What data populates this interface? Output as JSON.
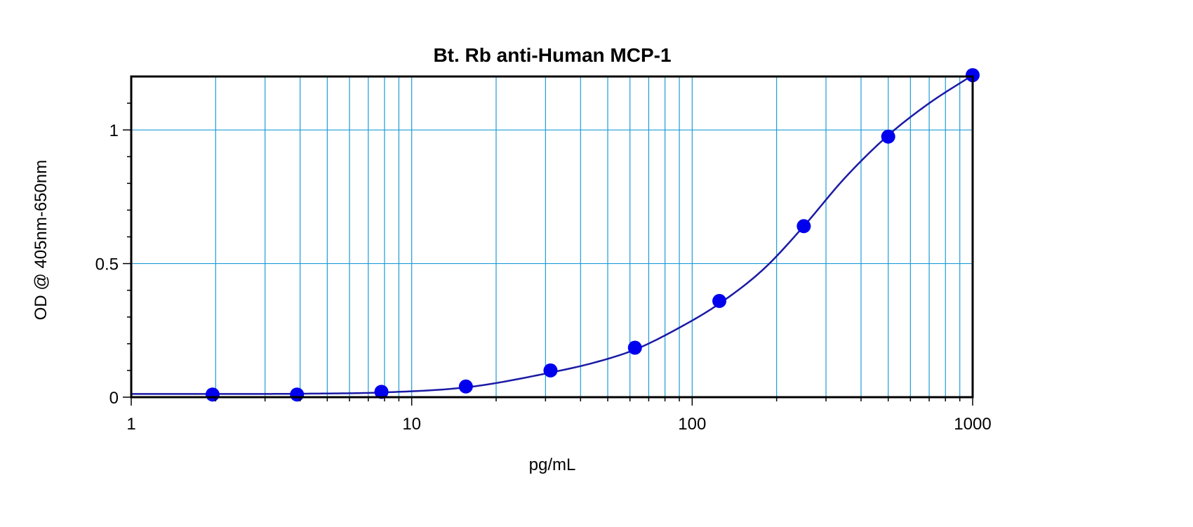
{
  "chart_data": {
    "type": "scatter",
    "title": "Bt. Rb anti-Human MCP-1",
    "xlabel": "pg/mL",
    "ylabel": "OD @ 405nm-650nm",
    "xscale": "log",
    "xlim": [
      1,
      1000
    ],
    "ylim": [
      0,
      1.2
    ],
    "x_ticks": [
      1,
      10,
      100,
      1000
    ],
    "x_tick_labels": [
      "1",
      "10",
      "100",
      "1000"
    ],
    "y_ticks": [
      0,
      0.5,
      1
    ],
    "y_tick_labels": [
      "0",
      "0.5",
      "1"
    ],
    "grid": true,
    "legend": "none",
    "colors": {
      "points": "#0000ee",
      "curve": "#1a1aa6",
      "grid": "#1e9bd7",
      "axes": "#000000"
    },
    "series": [
      {
        "x": [
          1.95,
          3.9,
          7.8,
          15.6,
          31.25,
          62.5,
          125,
          250,
          500,
          1000
        ],
        "y": [
          0.01,
          0.01,
          0.02,
          0.04,
          0.1,
          0.185,
          0.36,
          0.64,
          0.975,
          1.205
        ]
      }
    ],
    "fit_curve": {
      "x": [
        1,
        2,
        4,
        8,
        16,
        31.25,
        45,
        62.5,
        90,
        125,
        180,
        250,
        350,
        500,
        700,
        1000
      ],
      "y": [
        0.012,
        0.012,
        0.013,
        0.018,
        0.038,
        0.092,
        0.13,
        0.178,
        0.26,
        0.35,
        0.48,
        0.64,
        0.82,
        0.98,
        1.1,
        1.205
      ]
    }
  }
}
